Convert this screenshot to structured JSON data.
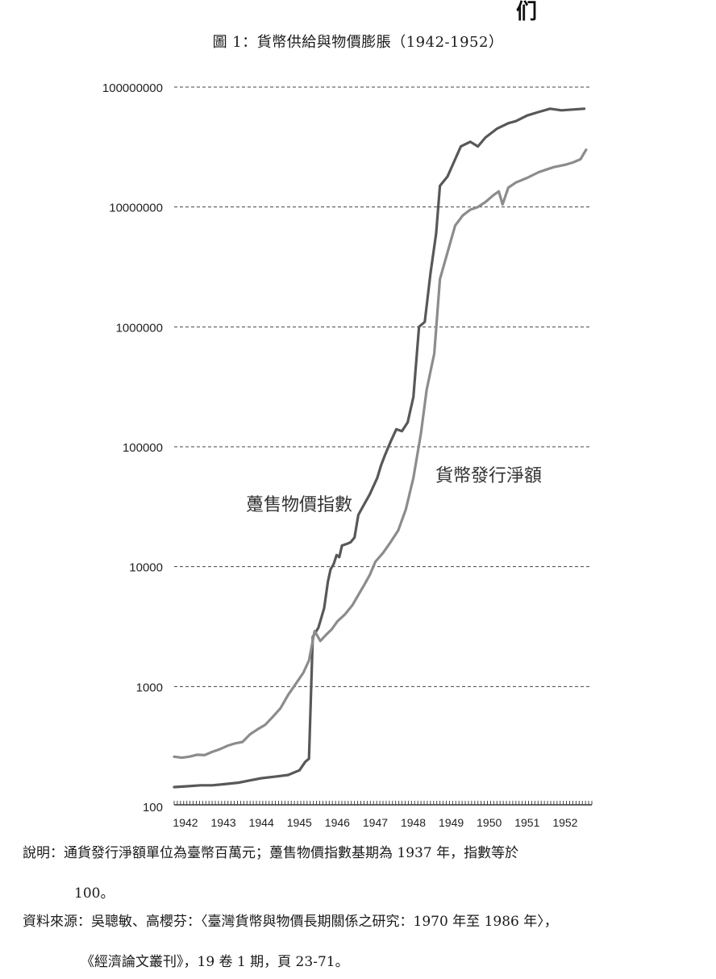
{
  "page": {
    "corner_mark": "们",
    "title": "圖 1：貨幣供給與物價膨脹（1942-1952）",
    "note_line1": "說明：通貨發行淨額單位為臺幣百萬元；躉售物價指數基期為 1937 年，指數等於",
    "note_line2": "100。",
    "source_line1": "資料來源：吳聰敏、高櫻芬：〈臺灣貨幣與物價長期關係之研究：1970 年至 1986 年〉，",
    "source_line2": "《經濟論文叢刊》，19 卷 1 期，頁 23-71。"
  },
  "chart_data": {
    "type": "line",
    "y_scale": "log",
    "ylim": [
      100,
      100000000
    ],
    "y_ticks": [
      "100",
      "1000",
      "10000",
      "100000",
      "1000000",
      "10000000",
      "100000000"
    ],
    "xlim": [
      1942,
      1953
    ],
    "x_ticks": [
      "1942",
      "1943",
      "1944",
      "1945",
      "1946",
      "1947",
      "1948",
      "1949",
      "1950",
      "1951",
      "1952"
    ],
    "grid": "horizontal-dashed",
    "colors": {
      "wholesale": "#585858",
      "currency": "#8c8c8c",
      "grid": "#444444",
      "axis": "#333333"
    },
    "series": [
      {
        "name": "躉售物價指數",
        "key": "wholesale",
        "points": [
          [
            1942.0,
            145
          ],
          [
            1942.3,
            147
          ],
          [
            1942.7,
            150
          ],
          [
            1943.0,
            150
          ],
          [
            1943.3,
            153
          ],
          [
            1943.7,
            158
          ],
          [
            1944.0,
            165
          ],
          [
            1944.3,
            172
          ],
          [
            1944.7,
            178
          ],
          [
            1945.0,
            183
          ],
          [
            1945.3,
            200
          ],
          [
            1945.45,
            235
          ],
          [
            1945.55,
            250
          ],
          [
            1945.65,
            2600
          ],
          [
            1945.8,
            3100
          ],
          [
            1945.95,
            4500
          ],
          [
            1946.05,
            7500
          ],
          [
            1946.12,
            9500
          ],
          [
            1946.2,
            10500
          ],
          [
            1946.28,
            12500
          ],
          [
            1946.35,
            12000
          ],
          [
            1946.42,
            15000
          ],
          [
            1946.55,
            15500
          ],
          [
            1946.65,
            16000
          ],
          [
            1946.75,
            17500
          ],
          [
            1946.85,
            27000
          ],
          [
            1947.0,
            33000
          ],
          [
            1947.15,
            40000
          ],
          [
            1947.35,
            55000
          ],
          [
            1947.45,
            70000
          ],
          [
            1947.55,
            85000
          ],
          [
            1947.7,
            110000
          ],
          [
            1947.85,
            140000
          ],
          [
            1948.0,
            135000
          ],
          [
            1948.15,
            160000
          ],
          [
            1948.3,
            260000
          ],
          [
            1948.45,
            1000000
          ],
          [
            1948.6,
            1100000
          ],
          [
            1948.75,
            2800000
          ],
          [
            1948.9,
            6000000
          ],
          [
            1949.0,
            15000000
          ],
          [
            1949.2,
            18000000
          ],
          [
            1949.35,
            23000000
          ],
          [
            1949.55,
            32000000
          ],
          [
            1949.8,
            35000000
          ],
          [
            1950.0,
            32000000
          ],
          [
            1950.2,
            38000000
          ],
          [
            1950.5,
            45000000
          ],
          [
            1950.8,
            50000000
          ],
          [
            1951.0,
            52000000
          ],
          [
            1951.3,
            58000000
          ],
          [
            1951.6,
            62000000
          ],
          [
            1951.9,
            66000000
          ],
          [
            1952.2,
            64000000
          ],
          [
            1952.5,
            65000000
          ],
          [
            1952.8,
            66000000
          ]
        ]
      },
      {
        "name": "貨幣發行淨額",
        "key": "currency",
        "points": [
          [
            1942.0,
            260
          ],
          [
            1942.2,
            255
          ],
          [
            1942.4,
            260
          ],
          [
            1942.6,
            270
          ],
          [
            1942.8,
            268
          ],
          [
            1943.0,
            285
          ],
          [
            1943.2,
            300
          ],
          [
            1943.4,
            320
          ],
          [
            1943.6,
            335
          ],
          [
            1943.8,
            345
          ],
          [
            1944.0,
            400
          ],
          [
            1944.2,
            440
          ],
          [
            1944.4,
            480
          ],
          [
            1944.6,
            560
          ],
          [
            1944.8,
            660
          ],
          [
            1945.0,
            850
          ],
          [
            1945.2,
            1050
          ],
          [
            1945.4,
            1300
          ],
          [
            1945.55,
            1650
          ],
          [
            1945.7,
            2900
          ],
          [
            1945.85,
            2400
          ],
          [
            1946.0,
            2700
          ],
          [
            1946.15,
            3000
          ],
          [
            1946.3,
            3500
          ],
          [
            1946.5,
            4000
          ],
          [
            1946.7,
            4800
          ],
          [
            1946.85,
            5800
          ],
          [
            1947.0,
            7000
          ],
          [
            1947.15,
            8500
          ],
          [
            1947.3,
            11000
          ],
          [
            1947.5,
            13000
          ],
          [
            1947.7,
            16000
          ],
          [
            1947.9,
            20000
          ],
          [
            1948.1,
            30000
          ],
          [
            1948.3,
            55000
          ],
          [
            1948.5,
            130000
          ],
          [
            1948.65,
            300000
          ],
          [
            1948.85,
            600000
          ],
          [
            1949.0,
            2500000
          ],
          [
            1949.2,
            4200000
          ],
          [
            1949.4,
            7000000
          ],
          [
            1949.6,
            8500000
          ],
          [
            1949.8,
            9500000
          ],
          [
            1950.0,
            10000000
          ],
          [
            1950.2,
            11000000
          ],
          [
            1950.4,
            12500000
          ],
          [
            1950.55,
            13500000
          ],
          [
            1950.65,
            10500000
          ],
          [
            1950.8,
            14500000
          ],
          [
            1951.0,
            16000000
          ],
          [
            1951.3,
            17500000
          ],
          [
            1951.6,
            19500000
          ],
          [
            1951.8,
            20500000
          ],
          [
            1952.0,
            21500000
          ],
          [
            1952.3,
            22500000
          ],
          [
            1952.5,
            23500000
          ],
          [
            1952.7,
            25000000
          ],
          [
            1952.85,
            30000000
          ]
        ]
      }
    ]
  }
}
